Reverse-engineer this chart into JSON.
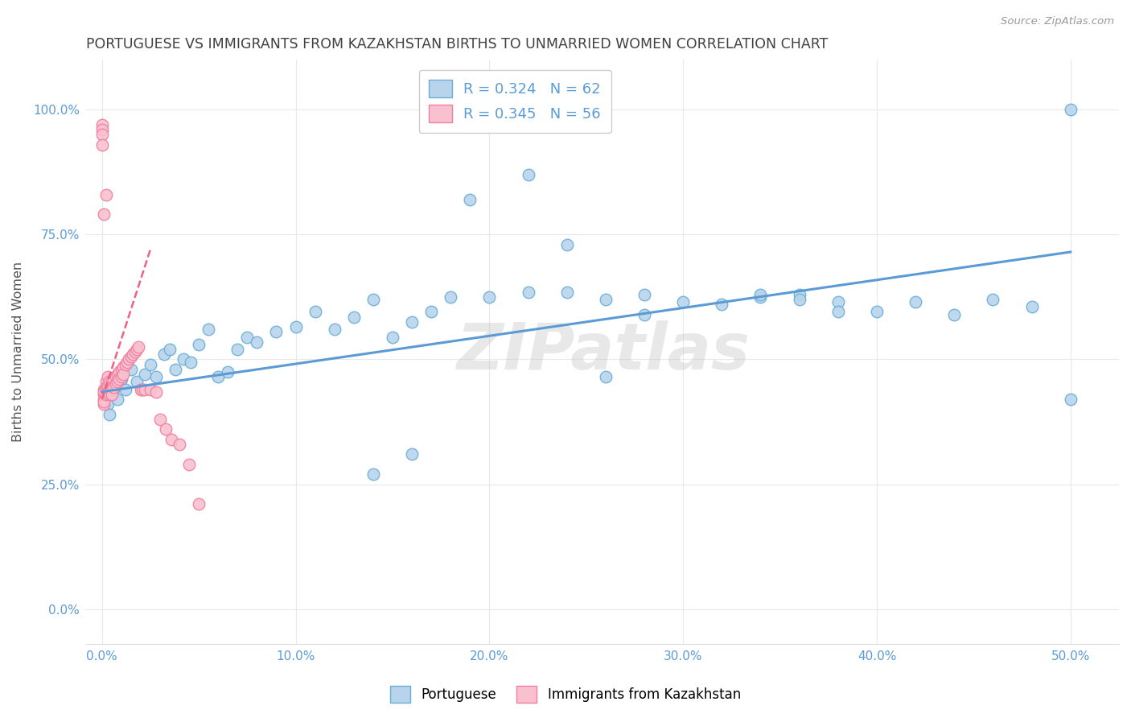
{
  "title": "PORTUGUESE VS IMMIGRANTS FROM KAZAKHSTAN BIRTHS TO UNMARRIED WOMEN CORRELATION CHART",
  "source": "Source: ZipAtlas.com",
  "ylabel": "Births to Unmarried Women",
  "x_ticks": [
    0.0,
    0.1,
    0.2,
    0.3,
    0.4,
    0.5
  ],
  "x_tick_labels": [
    "0.0%",
    "10.0%",
    "20.0%",
    "30.0%",
    "40.0%",
    "50.0%"
  ],
  "y_ticks": [
    0.0,
    0.25,
    0.5,
    0.75,
    1.0
  ],
  "y_tick_labels": [
    "0.0%",
    "25.0%",
    "50.0%",
    "75.0%",
    "100.0%"
  ],
  "xlim": [
    -0.008,
    0.525
  ],
  "ylim": [
    -0.07,
    1.1
  ],
  "watermark": "ZIPatlas",
  "legend_blue_r": "R = 0.324",
  "legend_blue_n": "N = 62",
  "legend_pink_r": "R = 0.345",
  "legend_pink_n": "N = 56",
  "blue_color": "#b8d4ed",
  "pink_color": "#f9c0d0",
  "blue_edge_color": "#6aaed6",
  "pink_edge_color": "#f080a0",
  "blue_line_color": "#5b9bd5",
  "pink_line_color": "#f06080",
  "title_color": "#404040",
  "axis_tick_color": "#5b9bd5",
  "grid_color": "#e8e8e8",
  "blue_scatter_x": [
    0.002,
    0.003,
    0.004,
    0.005,
    0.006,
    0.008,
    0.01,
    0.012,
    0.015,
    0.018,
    0.022,
    0.025,
    0.028,
    0.032,
    0.035,
    0.038,
    0.042,
    0.046,
    0.05,
    0.055,
    0.06,
    0.065,
    0.07,
    0.075,
    0.08,
    0.09,
    0.1,
    0.11,
    0.12,
    0.13,
    0.14,
    0.15,
    0.16,
    0.17,
    0.18,
    0.2,
    0.22,
    0.24,
    0.26,
    0.28,
    0.3,
    0.32,
    0.34,
    0.36,
    0.38,
    0.38,
    0.4,
    0.42,
    0.44,
    0.46,
    0.48,
    0.5,
    0.5,
    0.22,
    0.19,
    0.24,
    0.14,
    0.16,
    0.26,
    0.28,
    0.34,
    0.36
  ],
  "blue_scatter_y": [
    0.435,
    0.41,
    0.39,
    0.43,
    0.44,
    0.42,
    0.46,
    0.44,
    0.48,
    0.455,
    0.47,
    0.49,
    0.465,
    0.51,
    0.52,
    0.48,
    0.5,
    0.495,
    0.53,
    0.56,
    0.465,
    0.475,
    0.52,
    0.545,
    0.535,
    0.555,
    0.565,
    0.595,
    0.56,
    0.585,
    0.62,
    0.545,
    0.575,
    0.595,
    0.625,
    0.625,
    0.635,
    0.635,
    0.62,
    0.59,
    0.615,
    0.61,
    0.625,
    0.63,
    0.615,
    0.595,
    0.595,
    0.615,
    0.59,
    0.62,
    0.605,
    0.42,
    1.0,
    0.87,
    0.82,
    0.73,
    0.27,
    0.31,
    0.465,
    0.63,
    0.63,
    0.62
  ],
  "pink_scatter_x": [
    0.0,
    0.0,
    0.0,
    0.0,
    0.001,
    0.001,
    0.001,
    0.001,
    0.001,
    0.001,
    0.002,
    0.002,
    0.002,
    0.002,
    0.003,
    0.003,
    0.003,
    0.004,
    0.004,
    0.004,
    0.005,
    0.005,
    0.005,
    0.006,
    0.006,
    0.007,
    0.007,
    0.008,
    0.008,
    0.009,
    0.009,
    0.01,
    0.01,
    0.011,
    0.011,
    0.012,
    0.013,
    0.014,
    0.015,
    0.016,
    0.017,
    0.018,
    0.019,
    0.02,
    0.021,
    0.022,
    0.025,
    0.028,
    0.03,
    0.033,
    0.036,
    0.04,
    0.045,
    0.05,
    0.001,
    0.002
  ],
  "pink_scatter_y": [
    0.97,
    0.96,
    0.95,
    0.93,
    0.44,
    0.43,
    0.42,
    0.41,
    0.435,
    0.415,
    0.455,
    0.445,
    0.44,
    0.43,
    0.465,
    0.445,
    0.435,
    0.455,
    0.44,
    0.43,
    0.455,
    0.44,
    0.43,
    0.46,
    0.445,
    0.465,
    0.45,
    0.47,
    0.455,
    0.475,
    0.46,
    0.48,
    0.465,
    0.485,
    0.47,
    0.49,
    0.495,
    0.5,
    0.505,
    0.51,
    0.515,
    0.52,
    0.525,
    0.44,
    0.44,
    0.44,
    0.44,
    0.435,
    0.38,
    0.36,
    0.34,
    0.33,
    0.29,
    0.21,
    0.79,
    0.83
  ],
  "blue_trend_x": [
    0.0,
    0.5
  ],
  "blue_trend_y": [
    0.435,
    0.715
  ],
  "pink_trend_x": [
    0.0,
    0.025
  ],
  "pink_trend_y": [
    0.42,
    0.72
  ]
}
